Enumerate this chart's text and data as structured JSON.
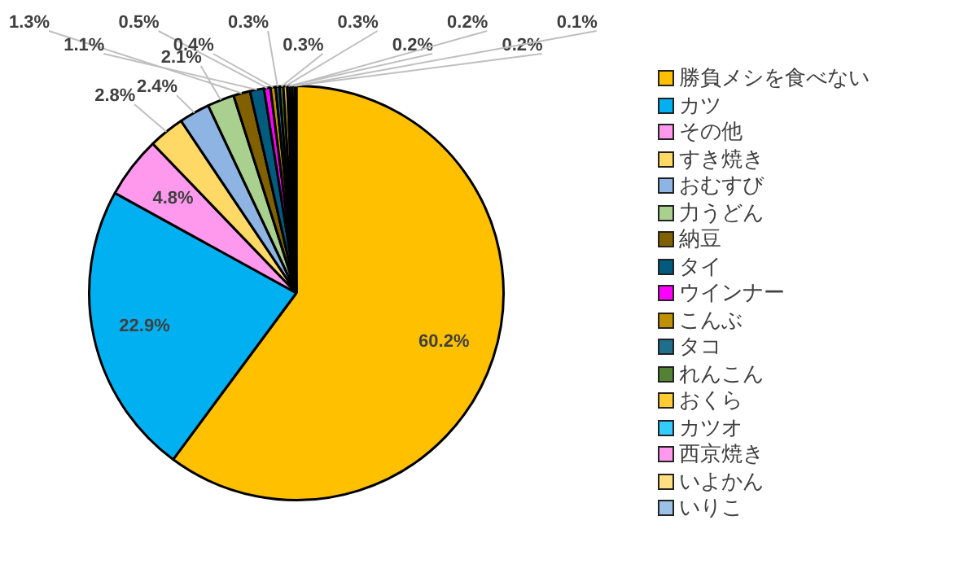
{
  "chart_data": {
    "type": "pie",
    "legend": "right",
    "categories": [
      "勝負メシを食べない",
      "カツ",
      "その他",
      "すき焼き",
      "おむすび",
      "力うどん",
      "納豆",
      "タイ",
      "ウインナー",
      "こんぶ",
      "タコ",
      "れんこん",
      "おくら",
      "カツオ",
      "西京焼き",
      "いよかん",
      "いりこ"
    ],
    "values": [
      60.2,
      22.9,
      4.8,
      2.8,
      2.4,
      2.1,
      1.3,
      1.1,
      0.5,
      0.4,
      0.3,
      0.3,
      0.3,
      0.2,
      0.2,
      0.2,
      0.1
    ],
    "value_labels": [
      "60.2%",
      "22.9%",
      "4.8%",
      "2.8%",
      "2.4%",
      "2.1%",
      "1.3%",
      "1.1%",
      "0.5%",
      "0.4%",
      "0.3%",
      "0.3%",
      "0.3%",
      "0.2%",
      "0.2%",
      "0.2%",
      "0.1%"
    ],
    "colors": [
      "#ffc000",
      "#00b0f0",
      "#ff99ee",
      "#ffd966",
      "#8db4e2",
      "#a9d08e",
      "#806000",
      "#005b7f",
      "#ff00ff",
      "#bf9000",
      "#1f6f8b",
      "#548235",
      "#ffcc33",
      "#33ccff",
      "#ff99ee",
      "#ffe080",
      "#9bc2e6"
    ]
  }
}
